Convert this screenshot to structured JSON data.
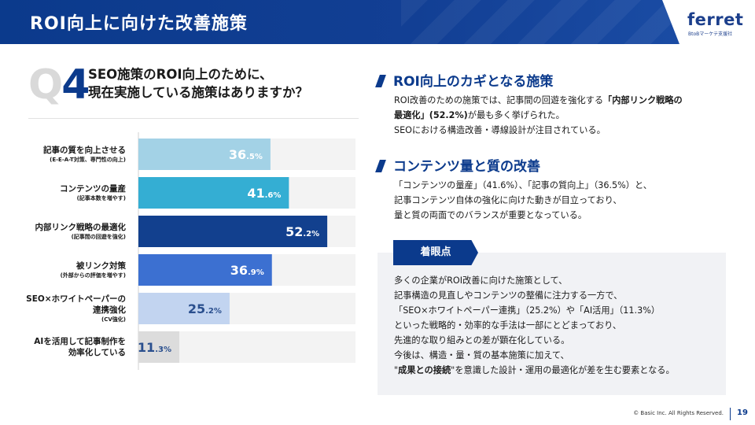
{
  "header": {
    "title": "ROI向上に向けた改善施策"
  },
  "logo": {
    "word": "ferret",
    "sub": "BtoBマーケテ支援社"
  },
  "question": {
    "q": "Q",
    "number": "4",
    "lines": [
      "SEO施策のROI向上のために、",
      "現在実施している施策はありますか？"
    ]
  },
  "chart_data": {
    "type": "bar",
    "orientation": "horizontal",
    "xlim": [
      0,
      60
    ],
    "grid": false,
    "categories": [
      {
        "main": [
          "記事の質を向上させる"
        ],
        "sub": "(E-E-A-T対策、専門性の向上)"
      },
      {
        "main": [
          "コンテンツの量産"
        ],
        "sub": "(記事本数を増やす)"
      },
      {
        "main": [
          "内部リンク戦略の最適化"
        ],
        "sub": "(記事間の回遊を強化)"
      },
      {
        "main": [
          "被リンク対策"
        ],
        "sub": "(外部からの評価を増やす)"
      },
      {
        "main": [
          "SEO×ホワイトペーパーの",
          "連携強化"
        ],
        "sub": "(CV強化)"
      },
      {
        "main": [
          "AIを活用して記事制作を",
          "効率化している"
        ],
        "sub": ""
      }
    ],
    "values": [
      36.5,
      41.6,
      52.2,
      36.9,
      25.2,
      11.3
    ],
    "value_labels": [
      {
        "int": "36",
        "dec": ".5%"
      },
      {
        "int": "41",
        "dec": ".6%"
      },
      {
        "int": "52",
        "dec": ".2%"
      },
      {
        "int": "36",
        "dec": ".9%"
      },
      {
        "int": "25",
        "dec": ".2%"
      },
      {
        "int": "11",
        "dec": ".3%"
      }
    ],
    "bar_colors": [
      "#a3d2e6",
      "#34aed3",
      "#12408e",
      "#3c70d1",
      "#c2d4f0",
      "#dcdcdc"
    ],
    "label_colors": [
      "#ffffff",
      "#ffffff",
      "#ffffff",
      "#ffffff",
      "#2a4f8e",
      "#2a4f8e"
    ]
  },
  "sections": [
    {
      "heading": "ROI向上のカギとなる施策",
      "lines": [
        [
          {
            "t": "ROI改善のための施策では、記事間の回遊を強化する"
          },
          {
            "t": "「内部リンク戦略の",
            "b": true
          }
        ],
        [
          {
            "t": "最適化」(52.2%)",
            "b": true
          },
          {
            "t": "が最も多く挙げられた。"
          }
        ],
        [
          {
            "t": "SEOにおける構造改善・導線設計が注目されている。"
          }
        ]
      ]
    },
    {
      "heading": "コンテンツ量と質の改善",
      "lines": [
        [
          {
            "t": "「コンテンツの量産」（41.6%）、「記事の質向上」（36.5%）と、"
          }
        ],
        [
          {
            "t": "記事コンテンツ自体の強化に向けた動きが目立っており、"
          }
        ],
        [
          {
            "t": "量と質の両面でのバランスが重要となっている。"
          }
        ]
      ]
    }
  ],
  "focus": {
    "tab": "着眼点",
    "lines": [
      [
        {
          "t": "多くの企業がROI改善に向けた施策として、"
        }
      ],
      [
        {
          "t": "記事構造の見直しやコンテンツの整備に注力する一方で、"
        }
      ],
      [
        {
          "t": "「SEO×ホワイトペーパー連携」（25.2%）や「AI活用」（11.3%）"
        }
      ],
      [
        {
          "t": "といった戦略的・効率的な手法は一部にとどまっており、"
        }
      ],
      [
        {
          "t": "先進的な取り組みとの差が顕在化している。"
        }
      ],
      [
        {
          "t": "今後は、構造・量・質の基本施策に加えて、"
        }
      ],
      [
        {
          "t": "\""
        },
        {
          "t": "成果との接続",
          "b": true
        },
        {
          "t": "\"を意識した設計・運用の最適化が差を生む要素となる。"
        }
      ]
    ]
  },
  "footer": {
    "copyright": "© Basic Inc. All Rights Reserved.",
    "page": "19"
  }
}
